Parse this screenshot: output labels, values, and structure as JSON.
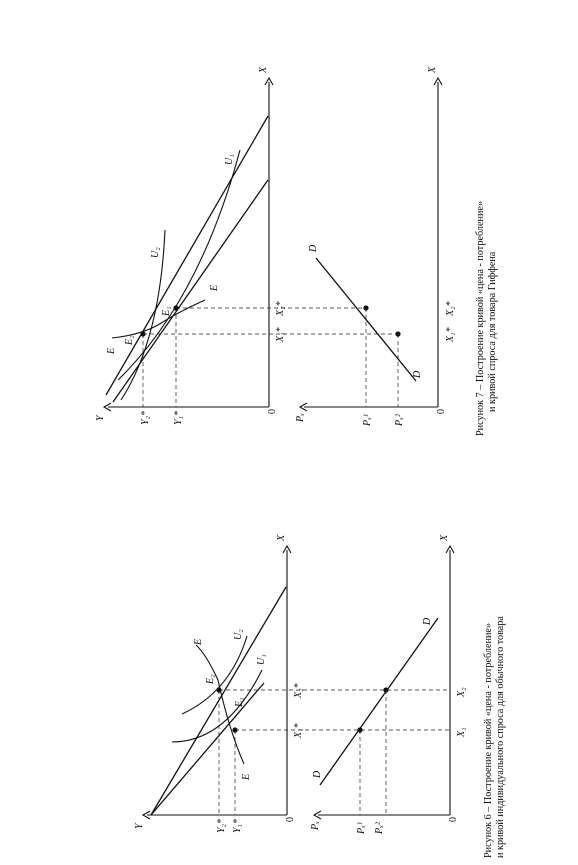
{
  "figure6": {
    "caption_line1": "Рисунок 6 – Построение кривой «цена - потребление»",
    "caption_line2": "и кривой индивидуального спроса для обычного товара",
    "labels": {
      "y_axis": "Y",
      "x_axis": "X",
      "origin": "0",
      "y2": "Y₂*",
      "y1": "Y₁*",
      "e_top": "E",
      "e_bottom": "E",
      "e2": "E₂",
      "e1": "E₁",
      "u2": "U₂",
      "u1": "U₁",
      "x1_star": "X₁*",
      "x2_star": "X₂*",
      "px_axis": "Pₓ",
      "x_axis_lower": "X",
      "origin_lower": "0",
      "p1": "Pₓ¹",
      "p2": "Pₓ²",
      "d_left": "D",
      "d_right": "D",
      "x1": "X₁",
      "x2": "X₂"
    }
  },
  "figure7": {
    "caption_line1": "Рисунок 7 – Построение кривой «цена - потребление»",
    "caption_line2": "и кривой спроса для товара Гиффена",
    "labels": {
      "y_axis": "Y",
      "x_axis": "X",
      "origin": "0",
      "y2": "Y₂*",
      "y1": "Y₁*",
      "e_top": "E",
      "e_bottom": "E",
      "e2": "E₂",
      "e1": "E₁",
      "u2": "U₂",
      "u1": "U₁",
      "x1_star": "X₁*",
      "x2_star": "X₂*",
      "px_axis": "Pₓ",
      "x_axis_lower": "X",
      "origin_lower": "0",
      "p1": "Pₓ¹",
      "p2": "Pₓ²",
      "d_left": "D",
      "d_right": "D",
      "x1": "X₁*",
      "x2": "X₂*"
    }
  }
}
